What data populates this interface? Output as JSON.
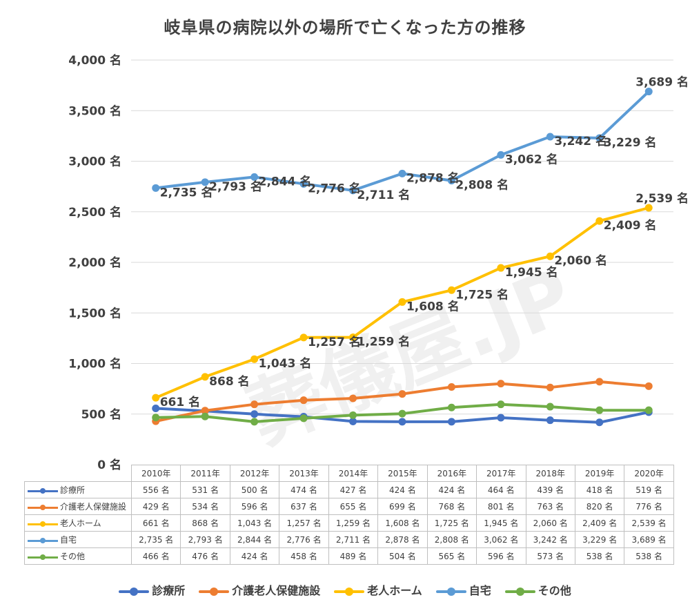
{
  "chart_data": {
    "type": "line",
    "title": "岐阜県の病院以外の場所で亡くなった方の推移",
    "watermark": "葬儀屋.JP",
    "categories": [
      "2010年",
      "2011年",
      "2012年",
      "2013年",
      "2014年",
      "2015年",
      "2016年",
      "2017年",
      "2018年",
      "2019年",
      "2020年"
    ],
    "ylim": [
      0,
      4000
    ],
    "yticks": [
      0,
      500,
      1000,
      1500,
      2000,
      2500,
      3000,
      3500,
      4000
    ],
    "ytick_labels": [
      "0 名",
      "500 名",
      "1,000 名",
      "1,500 名",
      "2,000 名",
      "2,500 名",
      "3,000 名",
      "3,500 名",
      "4,000 名"
    ],
    "grid": "horizontal",
    "legend_position": "bottom",
    "unit": "名",
    "series": [
      {
        "name": "診療所",
        "color": "#4472c4",
        "values": [
          556,
          531,
          500,
          474,
          427,
          424,
          424,
          464,
          439,
          418,
          519
        ],
        "labels": [
          "556 名",
          "531 名",
          "500 名",
          "474 名",
          "427 名",
          "424 名",
          "424 名",
          "464 名",
          "439 名",
          "418 名",
          "519 名"
        ],
        "show_labels": false
      },
      {
        "name": "介護老人保健施設",
        "color": "#ed7d31",
        "values": [
          429,
          534,
          596,
          637,
          655,
          699,
          768,
          801,
          763,
          820,
          776
        ],
        "labels": [
          "429 名",
          "534 名",
          "596 名",
          "637 名",
          "655 名",
          "699 名",
          "768 名",
          "801 名",
          "763 名",
          "820 名",
          "776 名"
        ],
        "show_labels": false
      },
      {
        "name": "老人ホーム",
        "color": "#ffc000",
        "values": [
          661,
          868,
          1043,
          1257,
          1259,
          1608,
          1725,
          1945,
          2060,
          2409,
          2539
        ],
        "labels": [
          "661 名",
          "868 名",
          "1,043 名",
          "1,257 名",
          "1,259 名",
          "1,608 名",
          "1,725 名",
          "1,945 名",
          "2,060 名",
          "2,409 名",
          "2,539 名"
        ],
        "show_labels": true
      },
      {
        "name": "自宅",
        "color": "#5b9bd5",
        "values": [
          2735,
          2793,
          2844,
          2776,
          2711,
          2878,
          2808,
          3062,
          3242,
          3229,
          3689
        ],
        "labels": [
          "2,735 名",
          "2,793 名",
          "2,844 名",
          "2,776 名",
          "2,711 名",
          "2,878 名",
          "2,808 名",
          "3,062 名",
          "3,242 名",
          "3,229 名",
          "3,689 名"
        ],
        "show_labels": true
      },
      {
        "name": "その他",
        "color": "#70ad47",
        "values": [
          466,
          476,
          424,
          458,
          489,
          504,
          565,
          596,
          573,
          538,
          538
        ],
        "labels": [
          "466 名",
          "476 名",
          "424 名",
          "458 名",
          "489 名",
          "504 名",
          "565 名",
          "596 名",
          "573 名",
          "538 名",
          "538 名"
        ],
        "show_labels": false
      }
    ]
  }
}
